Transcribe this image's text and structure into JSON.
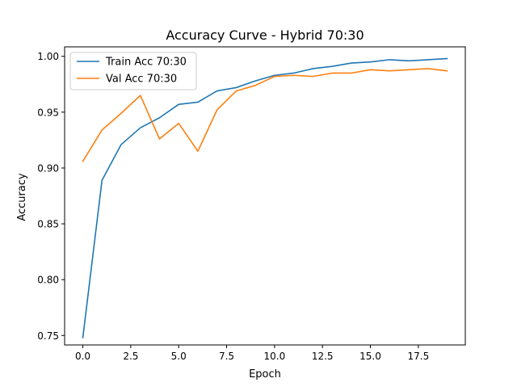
{
  "chart_data": {
    "type": "line",
    "title": "Accuracy Curve - Hybrid 70:30",
    "xlabel": "Epoch",
    "ylabel": "Accuracy",
    "xlim": [
      -0.95,
      19.95
    ],
    "ylim": [
      0.7415,
      1.0085
    ],
    "x_ticks": [
      0.0,
      2.5,
      5.0,
      7.5,
      10.0,
      12.5,
      15.0,
      17.5
    ],
    "x_tick_labels": [
      "0.0",
      "2.5",
      "5.0",
      "7.5",
      "10.0",
      "12.5",
      "15.0",
      "17.5"
    ],
    "y_ticks": [
      0.75,
      0.8,
      0.85,
      0.9,
      0.95,
      1.0
    ],
    "y_tick_labels": [
      "0.75",
      "0.80",
      "0.85",
      "0.90",
      "0.95",
      "1.00"
    ],
    "grid": false,
    "legend_position": "top-left",
    "x": [
      0,
      1,
      2,
      3,
      4,
      5,
      6,
      7,
      8,
      9,
      10,
      11,
      12,
      13,
      14,
      15,
      16,
      17,
      18,
      19
    ],
    "series": [
      {
        "name": "Train Acc 70:30",
        "color": "#1f77b4",
        "values": [
          0.748,
          0.889,
          0.921,
          0.936,
          0.945,
          0.957,
          0.959,
          0.969,
          0.972,
          0.978,
          0.983,
          0.985,
          0.989,
          0.991,
          0.994,
          0.995,
          0.997,
          0.996,
          0.997,
          0.998
        ]
      },
      {
        "name": "Val Acc 70:30",
        "color": "#ff7f0e",
        "values": [
          0.906,
          0.934,
          0.949,
          0.965,
          0.926,
          0.94,
          0.915,
          0.952,
          0.969,
          0.974,
          0.982,
          0.983,
          0.982,
          0.985,
          0.985,
          0.988,
          0.987,
          0.988,
          0.989,
          0.987
        ]
      }
    ]
  }
}
